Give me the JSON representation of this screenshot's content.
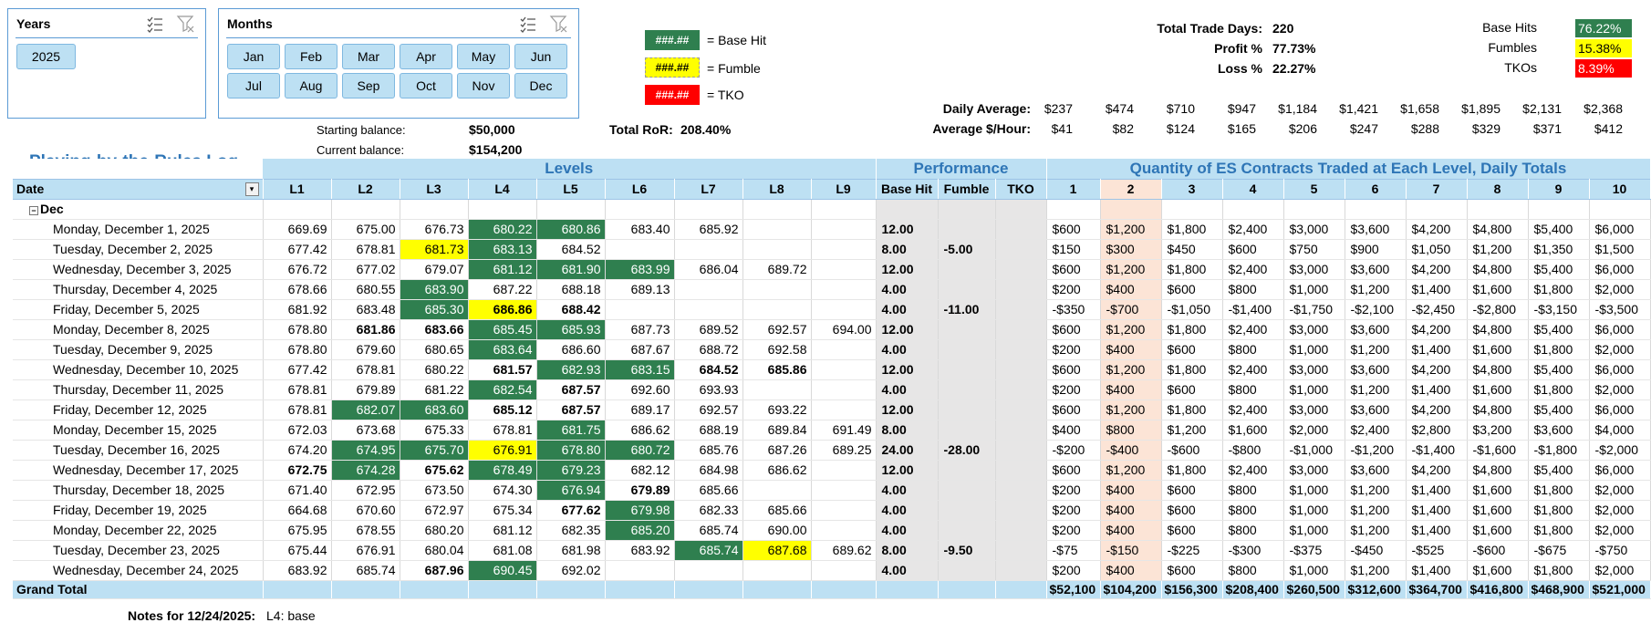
{
  "slicers": {
    "years": {
      "title": "Years",
      "items": [
        "2025"
      ]
    },
    "months": {
      "title": "Months",
      "items": [
        "Jan",
        "Feb",
        "Mar",
        "Apr",
        "May",
        "Jun",
        "Jul",
        "Aug",
        "Sep",
        "Oct",
        "Nov",
        "Dec"
      ]
    }
  },
  "legend": [
    {
      "swatch": "###.##",
      "label": "= Base Hit",
      "color": "#2f7f4f"
    },
    {
      "swatch": "###.##",
      "label": "= Fumble",
      "color": "#ffff00"
    },
    {
      "swatch": "###.##",
      "label": "= TKO",
      "color": "#ff0000"
    }
  ],
  "balances": {
    "starting_label": "Starting balance:",
    "starting_value": "$50,000",
    "current_label": "Current balance:",
    "current_value": "$154,200",
    "ror_label": "Total RoR:",
    "ror_value": "208.40%"
  },
  "stats": {
    "trade_days_label": "Total Trade Days:",
    "trade_days": "220",
    "profit_label": "Profit %",
    "profit": "77.73%",
    "loss_label": "Loss %",
    "loss": "22.27%"
  },
  "rates": [
    {
      "label": "Base Hits",
      "value": "76.22%",
      "color": "#2f7f4f",
      "text": "#ffffff"
    },
    {
      "label": "Fumbles",
      "value": "15.38%",
      "color": "#ffff00",
      "text": "#000000"
    },
    {
      "label": "TKOs",
      "value": "8.39%",
      "color": "#ff0000",
      "text": "#ffffff"
    }
  ],
  "averages": {
    "daily_label": "Daily Average:",
    "daily": [
      "$237",
      "$474",
      "$710",
      "$947",
      "$1,184",
      "$1,421",
      "$1,658",
      "$1,895",
      "$2,131",
      "$2,368"
    ],
    "hourly_label": "Average $/Hour:",
    "hourly": [
      "$41",
      "$82",
      "$124",
      "$165",
      "$206",
      "$247",
      "$288",
      "$329",
      "$371",
      "$412"
    ]
  },
  "table": {
    "title": "Playing-by-the-Rules Log",
    "groups": {
      "levels": "Levels",
      "performance": "Performance",
      "quantity": "Quantity of ES Contracts Traded at Each Level, Daily Totals"
    },
    "headers": [
      "Date",
      "L1",
      "L2",
      "L3",
      "L4",
      "L5",
      "L6",
      "L7",
      "L8",
      "L9",
      "Base Hit",
      "Fumble",
      "TKO",
      "1",
      "2",
      "3",
      "4",
      "5",
      "6",
      "7",
      "8",
      "9",
      "10"
    ],
    "month_group": "Dec",
    "rows": [
      {
        "date": "Monday, December 1, 2025",
        "levels": [
          "669.69",
          "675.00",
          "676.73",
          "680.22",
          "680.86",
          "683.40",
          "685.92",
          "",
          ""
        ],
        "fmt": [
          "",
          "",
          "",
          "bh",
          "bh",
          "",
          "",
          "",
          ""
        ],
        "base": "12.00",
        "fumble": "",
        "tko": "",
        "qty": [
          "$600",
          "$1,200",
          "$1,800",
          "$2,400",
          "$3,000",
          "$3,600",
          "$4,200",
          "$4,800",
          "$5,400",
          "$6,000"
        ]
      },
      {
        "date": "Tuesday, December 2, 2025",
        "levels": [
          "677.42",
          "678.81",
          "681.73",
          "683.13",
          "684.52",
          "",
          "",
          "",
          ""
        ],
        "fmt": [
          "",
          "",
          "fm",
          "bh",
          "",
          "",
          "",
          "",
          ""
        ],
        "base": "8.00",
        "fumble": "-5.00",
        "tko": "",
        "qty": [
          "$150",
          "$300",
          "$450",
          "$600",
          "$750",
          "$900",
          "$1,050",
          "$1,200",
          "$1,350",
          "$1,500"
        ]
      },
      {
        "date": "Wednesday, December 3, 2025",
        "levels": [
          "676.72",
          "677.02",
          "679.07",
          "681.12",
          "681.90",
          "683.99",
          "686.04",
          "689.72",
          ""
        ],
        "fmt": [
          "",
          "",
          "",
          "bh",
          "bh",
          "bh",
          "",
          "",
          ""
        ],
        "base": "12.00",
        "fumble": "",
        "tko": "",
        "qty": [
          "$600",
          "$1,200",
          "$1,800",
          "$2,400",
          "$3,000",
          "$3,600",
          "$4,200",
          "$4,800",
          "$5,400",
          "$6,000"
        ]
      },
      {
        "date": "Thursday, December 4, 2025",
        "levels": [
          "678.66",
          "680.55",
          "683.90",
          "687.22",
          "688.18",
          "689.13",
          "",
          "",
          ""
        ],
        "fmt": [
          "",
          "",
          "bh",
          "",
          "",
          "",
          "",
          "",
          ""
        ],
        "base": "4.00",
        "fumble": "",
        "tko": "",
        "qty": [
          "$200",
          "$400",
          "$600",
          "$800",
          "$1,000",
          "$1,200",
          "$1,400",
          "$1,600",
          "$1,800",
          "$2,000"
        ]
      },
      {
        "date": "Friday, December 5, 2025",
        "levels": [
          "681.92",
          "683.48",
          "685.30",
          "686.86",
          "688.42",
          "",
          "",
          "",
          ""
        ],
        "fmt": [
          "",
          "",
          "bh",
          "fm b",
          "b",
          "",
          "",
          "",
          ""
        ],
        "base": "4.00",
        "fumble": "-11.00",
        "tko": "",
        "qty": [
          "-$350",
          "-$700",
          "-$1,050",
          "-$1,400",
          "-$1,750",
          "-$2,100",
          "-$2,450",
          "-$2,800",
          "-$3,150",
          "-$3,500"
        ]
      },
      {
        "date": "Monday, December 8, 2025",
        "levels": [
          "678.80",
          "681.86",
          "683.66",
          "685.45",
          "685.93",
          "687.73",
          "689.52",
          "692.57",
          "694.00"
        ],
        "fmt": [
          "",
          "b",
          "b",
          "bh",
          "bh",
          "",
          "",
          "",
          ""
        ],
        "base": "12.00",
        "fumble": "",
        "tko": "",
        "qty": [
          "$600",
          "$1,200",
          "$1,800",
          "$2,400",
          "$3,000",
          "$3,600",
          "$4,200",
          "$4,800",
          "$5,400",
          "$6,000"
        ]
      },
      {
        "date": "Tuesday, December 9, 2025",
        "levels": [
          "678.80",
          "679.60",
          "680.65",
          "683.64",
          "686.60",
          "687.67",
          "688.72",
          "692.58",
          ""
        ],
        "fmt": [
          "",
          "",
          "",
          "bh",
          "",
          "",
          "",
          "",
          ""
        ],
        "base": "4.00",
        "fumble": "",
        "tko": "",
        "qty": [
          "$200",
          "$400",
          "$600",
          "$800",
          "$1,000",
          "$1,200",
          "$1,400",
          "$1,600",
          "$1,800",
          "$2,000"
        ]
      },
      {
        "date": "Wednesday, December 10, 2025",
        "levels": [
          "677.42",
          "678.81",
          "680.22",
          "681.57",
          "682.93",
          "683.15",
          "684.52",
          "685.86",
          ""
        ],
        "fmt": [
          "",
          "",
          "",
          "b",
          "bh",
          "bh",
          "b",
          "b",
          ""
        ],
        "base": "12.00",
        "fumble": "",
        "tko": "",
        "qty": [
          "$600",
          "$1,200",
          "$1,800",
          "$2,400",
          "$3,000",
          "$3,600",
          "$4,200",
          "$4,800",
          "$5,400",
          "$6,000"
        ]
      },
      {
        "date": "Thursday, December 11, 2025",
        "levels": [
          "678.81",
          "679.89",
          "681.22",
          "682.54",
          "687.57",
          "692.60",
          "693.93",
          "",
          ""
        ],
        "fmt": [
          "",
          "",
          "",
          "bh",
          "b",
          "",
          "",
          "",
          ""
        ],
        "base": "4.00",
        "fumble": "",
        "tko": "",
        "qty": [
          "$200",
          "$400",
          "$600",
          "$800",
          "$1,000",
          "$1,200",
          "$1,400",
          "$1,600",
          "$1,800",
          "$2,000"
        ]
      },
      {
        "date": "Friday, December 12, 2025",
        "levels": [
          "678.81",
          "682.07",
          "683.60",
          "685.12",
          "687.57",
          "689.17",
          "692.57",
          "693.22",
          ""
        ],
        "fmt": [
          "",
          "bh",
          "bh",
          "b",
          "b",
          "",
          "",
          "",
          ""
        ],
        "base": "12.00",
        "fumble": "",
        "tko": "",
        "qty": [
          "$600",
          "$1,200",
          "$1,800",
          "$2,400",
          "$3,000",
          "$3,600",
          "$4,200",
          "$4,800",
          "$5,400",
          "$6,000"
        ]
      },
      {
        "date": "Monday, December 15, 2025",
        "levels": [
          "672.03",
          "673.68",
          "675.33",
          "678.81",
          "681.75",
          "686.62",
          "688.19",
          "689.84",
          "691.49"
        ],
        "fmt": [
          "",
          "",
          "",
          "",
          "bh",
          "",
          "",
          "",
          ""
        ],
        "base": "8.00",
        "fumble": "",
        "tko": "",
        "qty": [
          "$400",
          "$800",
          "$1,200",
          "$1,600",
          "$2,000",
          "$2,400",
          "$2,800",
          "$3,200",
          "$3,600",
          "$4,000"
        ]
      },
      {
        "date": "Tuesday, December 16, 2025",
        "levels": [
          "674.20",
          "674.95",
          "675.70",
          "676.91",
          "678.80",
          "680.72",
          "685.76",
          "687.26",
          "689.25"
        ],
        "fmt": [
          "",
          "bh",
          "bh",
          "fm",
          "bh",
          "bh",
          "",
          "",
          ""
        ],
        "base": "24.00",
        "fumble": "-28.00",
        "tko": "",
        "qty": [
          "-$200",
          "-$400",
          "-$600",
          "-$800",
          "-$1,000",
          "-$1,200",
          "-$1,400",
          "-$1,600",
          "-$1,800",
          "-$2,000"
        ]
      },
      {
        "date": "Wednesday, December 17, 2025",
        "levels": [
          "672.75",
          "674.28",
          "675.62",
          "678.49",
          "679.23",
          "682.12",
          "684.98",
          "686.62",
          ""
        ],
        "fmt": [
          "b",
          "bh",
          "b",
          "bh",
          "bh",
          "",
          "",
          "",
          ""
        ],
        "base": "12.00",
        "fumble": "",
        "tko": "",
        "qty": [
          "$600",
          "$1,200",
          "$1,800",
          "$2,400",
          "$3,000",
          "$3,600",
          "$4,200",
          "$4,800",
          "$5,400",
          "$6,000"
        ]
      },
      {
        "date": "Thursday, December 18, 2025",
        "levels": [
          "671.40",
          "672.95",
          "673.50",
          "674.30",
          "676.94",
          "679.89",
          "685.66",
          "",
          ""
        ],
        "fmt": [
          "",
          "",
          "",
          "",
          "bh",
          "b",
          "",
          "",
          ""
        ],
        "base": "4.00",
        "fumble": "",
        "tko": "",
        "qty": [
          "$200",
          "$400",
          "$600",
          "$800",
          "$1,000",
          "$1,200",
          "$1,400",
          "$1,600",
          "$1,800",
          "$2,000"
        ]
      },
      {
        "date": "Friday, December 19, 2025",
        "levels": [
          "664.68",
          "670.60",
          "672.97",
          "675.34",
          "677.62",
          "679.98",
          "682.33",
          "685.66",
          ""
        ],
        "fmt": [
          "",
          "",
          "",
          "",
          "b",
          "bh",
          "",
          "",
          ""
        ],
        "base": "4.00",
        "fumble": "",
        "tko": "",
        "qty": [
          "$200",
          "$400",
          "$600",
          "$800",
          "$1,000",
          "$1,200",
          "$1,400",
          "$1,600",
          "$1,800",
          "$2,000"
        ]
      },
      {
        "date": "Monday, December 22, 2025",
        "levels": [
          "675.95",
          "678.55",
          "680.20",
          "681.12",
          "682.35",
          "685.20",
          "685.74",
          "690.00",
          ""
        ],
        "fmt": [
          "",
          "",
          "",
          "",
          "",
          "bh",
          "",
          "",
          ""
        ],
        "base": "4.00",
        "fumble": "",
        "tko": "",
        "qty": [
          "$200",
          "$400",
          "$600",
          "$800",
          "$1,000",
          "$1,200",
          "$1,400",
          "$1,600",
          "$1,800",
          "$2,000"
        ]
      },
      {
        "date": "Tuesday, December 23, 2025",
        "levels": [
          "675.44",
          "676.91",
          "680.04",
          "681.08",
          "681.98",
          "683.92",
          "685.74",
          "687.68",
          "689.62"
        ],
        "fmt": [
          "",
          "",
          "",
          "",
          "",
          "",
          "bh",
          "fm",
          ""
        ],
        "base": "8.00",
        "fumble": "-9.50",
        "tko": "",
        "qty": [
          "-$75",
          "-$150",
          "-$225",
          "-$300",
          "-$375",
          "-$450",
          "-$525",
          "-$600",
          "-$675",
          "-$750"
        ]
      },
      {
        "date": "Wednesday, December 24, 2025",
        "levels": [
          "683.92",
          "685.74",
          "687.96",
          "690.45",
          "692.02",
          "",
          "",
          "",
          ""
        ],
        "fmt": [
          "",
          "",
          "b",
          "bh",
          "",
          "",
          "",
          "",
          ""
        ],
        "base": "4.00",
        "fumble": "",
        "tko": "",
        "qty": [
          "$200",
          "$400",
          "$600",
          "$800",
          "$1,000",
          "$1,200",
          "$1,400",
          "$1,600",
          "$1,800",
          "$2,000"
        ]
      }
    ],
    "grand_total_label": "Grand Total",
    "grand_total": [
      "$52,100",
      "$104,200",
      "$156,300",
      "$208,400",
      "$260,500",
      "$312,600",
      "$364,700",
      "$416,800",
      "$468,900",
      "$521,000"
    ]
  },
  "notes": {
    "label": "Notes for 12/24/2025:",
    "text": "L4: base"
  }
}
